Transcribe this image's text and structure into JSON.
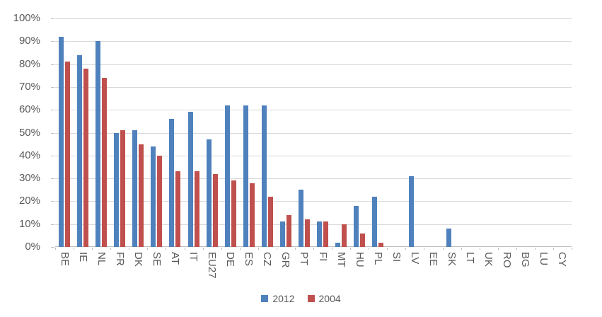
{
  "chart_data": {
    "type": "bar",
    "title": "",
    "categories": [
      "BE",
      "IE",
      "NL",
      "FR",
      "DK",
      "SE",
      "AT",
      "IT",
      "EU27",
      "DE",
      "ES",
      "CZ",
      "GR",
      "PT",
      "FI",
      "MT",
      "HU",
      "PL",
      "SI",
      "LV",
      "EE",
      "SK",
      "LT",
      "UK",
      "RO",
      "BG",
      "LU",
      "CY"
    ],
    "series": [
      {
        "name": "2012",
        "color": "#4F81BD",
        "values": [
          92,
          84,
          90,
          50,
          51,
          44,
          56,
          59,
          47,
          62,
          62,
          62,
          11,
          25,
          11,
          2,
          18,
          22,
          0,
          31,
          0,
          8,
          0,
          0,
          0,
          0,
          0,
          0
        ]
      },
      {
        "name": "2004",
        "color": "#C0504D",
        "values": [
          81,
          78,
          74,
          51,
          45,
          40,
          33,
          33,
          32,
          29,
          28,
          22,
          14,
          12,
          11,
          10,
          6,
          2,
          0,
          0,
          0,
          0,
          0,
          0,
          0,
          0,
          0,
          0
        ]
      }
    ],
    "xlabel": "",
    "ylabel": "",
    "y_axis": {
      "min": 0,
      "max": 100,
      "step": 10,
      "tick_labels": [
        "0%",
        "10%",
        "20%",
        "30%",
        "40%",
        "50%",
        "60%",
        "70%",
        "80%",
        "90%",
        "100%"
      ]
    },
    "grid": true,
    "legend": {
      "position": "bottom",
      "entries": [
        "2012",
        "2004"
      ]
    }
  },
  "colors": {
    "background": "#FFFFFF",
    "gridline": "#D9D9D9",
    "axis_line": "#BFBFBF",
    "text": "#595959"
  }
}
